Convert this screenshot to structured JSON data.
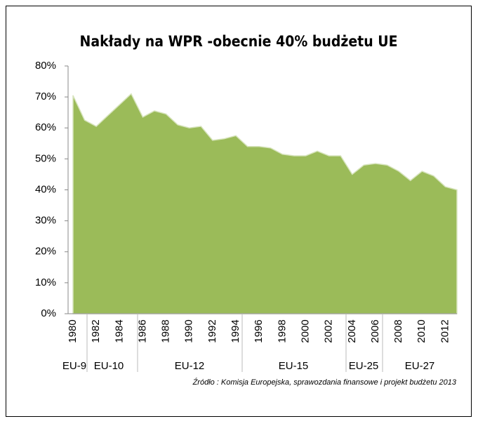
{
  "chart_data": {
    "type": "area",
    "title": "Nakłady na WPR -obecnie 40% budżetu UE",
    "categories": [
      "1980",
      null,
      "1982",
      null,
      "1984",
      null,
      "1986",
      null,
      "1988",
      null,
      "1990",
      null,
      "1992",
      null,
      "1994",
      null,
      "1996",
      null,
      "1998",
      null,
      "2000",
      null,
      "2002",
      null,
      "2004",
      null,
      "2006",
      null,
      "2008",
      null,
      "2010",
      null,
      "2012",
      null
    ],
    "values": [
      70.5,
      62.5,
      60.5,
      64,
      67.5,
      71,
      63.5,
      65.5,
      64.5,
      61,
      60,
      60.5,
      56,
      56.5,
      57.5,
      54,
      54,
      53.5,
      51.5,
      51,
      51,
      52.5,
      51,
      51,
      45,
      48,
      48.5,
      48,
      46,
      43,
      46,
      44.5,
      41,
      40
    ],
    "color": "#9bbb59",
    "ylim": [
      0,
      80
    ],
    "yticks": [
      {
        "value": 0,
        "label": "0%"
      },
      {
        "value": 10,
        "label": "10%"
      },
      {
        "value": 20,
        "label": "20%"
      },
      {
        "value": 30,
        "label": "30%"
      },
      {
        "value": 40,
        "label": "40%"
      },
      {
        "value": 50,
        "label": "50%"
      },
      {
        "value": 60,
        "label": "60%"
      },
      {
        "value": 70,
        "label": "70%"
      },
      {
        "value": 80,
        "label": "80%"
      }
    ],
    "groups": [
      "EU-9",
      "EU-10",
      "EU-12",
      "EU-15",
      "EU-25",
      "EU-27"
    ],
    "source": "Źródło : Komisja Europejska, sprawozdania finansowe i projekt budżetu 2013"
  }
}
